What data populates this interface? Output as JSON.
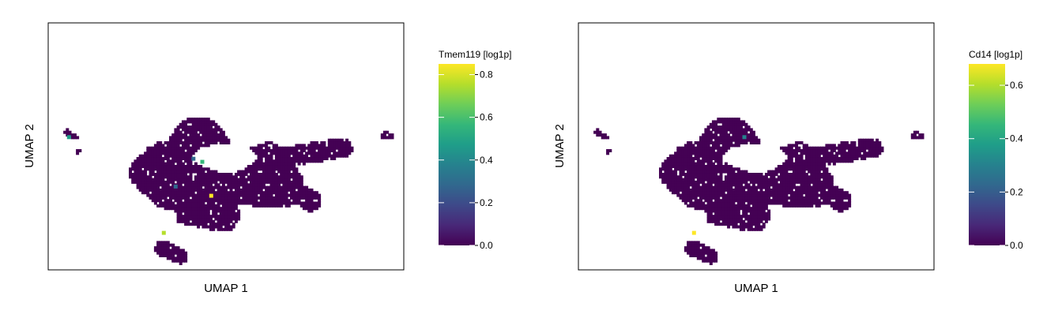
{
  "chart_data": [
    {
      "type": "scatter",
      "xlabel": "UMAP 1",
      "ylabel": "UMAP 2",
      "colorbar": {
        "label": "Tmem119 [log1p]",
        "range": [
          0.0,
          0.85
        ],
        "ticks": [
          "0.0",
          "0.2",
          "0.4",
          "0.6",
          "0.8"
        ],
        "tick_values": [
          0.0,
          0.2,
          0.4,
          0.6,
          0.8
        ],
        "colormap": "viridis"
      },
      "grid": false,
      "hotspots": [
        {
          "x": 0.7,
          "y": 4.3,
          "value": 0.45
        },
        {
          "x": 4.9,
          "y": 3.6,
          "value": 0.3
        },
        {
          "x": 5.2,
          "y": 3.5,
          "value": 0.6
        },
        {
          "x": 5.5,
          "y": 2.4,
          "value": 0.85
        },
        {
          "x": 3.9,
          "y": 1.2,
          "value": 0.8
        },
        {
          "x": 4.3,
          "y": 2.7,
          "value": 0.25
        }
      ]
    },
    {
      "type": "scatter",
      "xlabel": "UMAP 1",
      "ylabel": "UMAP 2",
      "colorbar": {
        "label": "Cd14 [log1p]",
        "range": [
          0.0,
          0.68
        ],
        "ticks": [
          "0.0",
          "0.2",
          "0.4",
          "0.6"
        ],
        "tick_values": [
          0.0,
          0.2,
          0.4,
          0.6
        ],
        "colormap": "viridis"
      },
      "grid": false,
      "hotspots": [
        {
          "x": 3.9,
          "y": 1.2,
          "value": 0.68
        },
        {
          "x": 5.6,
          "y": 4.3,
          "value": 0.3
        }
      ]
    }
  ],
  "colors": {
    "viridis": [
      "#440154",
      "#482878",
      "#3e4989",
      "#31688e",
      "#26828e",
      "#1f9e89",
      "#35b779",
      "#6ece58",
      "#b5de2b",
      "#fde725"
    ],
    "base_point": "#440154",
    "frame": "#000000"
  }
}
